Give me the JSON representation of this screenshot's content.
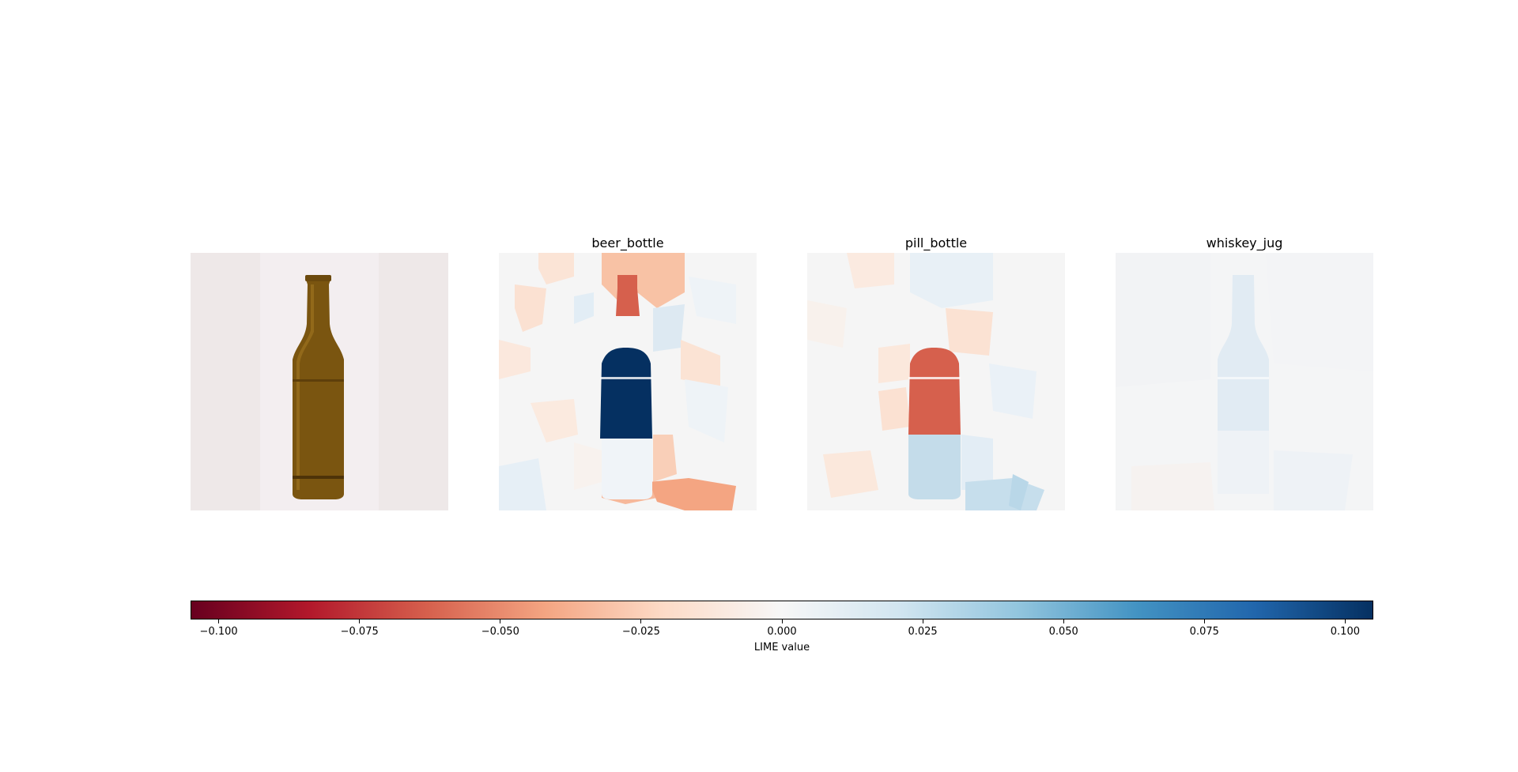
{
  "chart_data": {
    "type": "heatmap",
    "panels": [
      {
        "title": "",
        "kind": "image",
        "content": "brown glass bottle"
      },
      {
        "title": "beer_bottle",
        "kind": "heatmap"
      },
      {
        "title": "pill_bottle",
        "kind": "heatmap"
      },
      {
        "title": "whiskey_jug",
        "kind": "heatmap"
      }
    ],
    "segment_values": {
      "beer_bottle": {
        "bottle_body": 0.1,
        "bottle_neck_top": -0.07,
        "bottle_bottom": 0.01,
        "background_range": [
          -0.03,
          0.01
        ]
      },
      "pill_bottle": {
        "bottle_body": -0.07,
        "bottle_bottom": 0.025,
        "background_range": [
          -0.015,
          0.025
        ]
      },
      "whiskey_jug": {
        "bottle_body": 0.01,
        "background_range": [
          -0.005,
          0.01
        ]
      }
    },
    "colorbar": {
      "label": "LIME value",
      "range": [
        -0.105,
        0.105
      ],
      "ticks": [
        "−0.100",
        "−0.075",
        "−0.050",
        "−0.025",
        "0.000",
        "0.025",
        "0.050",
        "0.075",
        "0.100"
      ],
      "tick_values": [
        -0.1,
        -0.075,
        -0.05,
        -0.025,
        0,
        0.025,
        0.05,
        0.075,
        0.1
      ],
      "colormap": [
        "#67001f",
        "#b2182b",
        "#d6604d",
        "#f4a582",
        "#fddbc7",
        "#f7f7f7",
        "#d1e5f0",
        "#92c5de",
        "#4393c3",
        "#2166ac",
        "#053061"
      ]
    }
  }
}
